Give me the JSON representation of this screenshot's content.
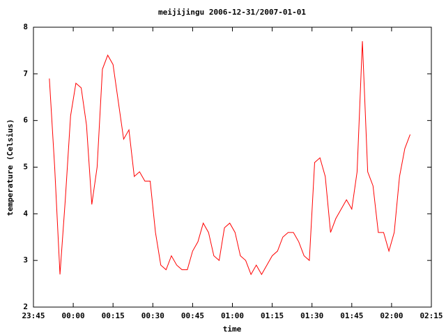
{
  "chart_data": {
    "type": "line",
    "title": "meijijingu 2006-12-31/2007-01-01",
    "xlabel": "time",
    "ylabel": "temperature (Celsius)",
    "x": [
      "23:51",
      "23:53",
      "23:55",
      "23:57",
      "23:59",
      "00:01",
      "00:03",
      "00:05",
      "00:07",
      "00:09",
      "00:11",
      "00:13",
      "00:15",
      "00:17",
      "00:19",
      "00:21",
      "00:23",
      "00:25",
      "00:27",
      "00:29",
      "00:31",
      "00:33",
      "00:35",
      "00:37",
      "00:39",
      "00:41",
      "00:43",
      "00:45",
      "00:47",
      "00:49",
      "00:51",
      "00:53",
      "00:55",
      "00:57",
      "00:59",
      "01:01",
      "01:03",
      "01:05",
      "01:07",
      "01:09",
      "01:11",
      "01:13",
      "01:15",
      "01:17",
      "01:19",
      "01:21",
      "01:23",
      "01:25",
      "01:27",
      "01:29",
      "01:31",
      "01:33",
      "01:35",
      "01:37",
      "01:39",
      "01:41",
      "01:43",
      "01:45",
      "01:47",
      "01:49",
      "01:51",
      "01:53",
      "01:55",
      "01:57",
      "01:59",
      "02:01",
      "02:03",
      "02:05",
      "02:07"
    ],
    "series": [
      {
        "color": "#ff0000",
        "values": [
          6.9,
          5.0,
          2.7,
          4.3,
          6.1,
          6.8,
          6.7,
          5.9,
          4.2,
          5.0,
          7.1,
          7.4,
          7.2,
          6.4,
          5.6,
          5.8,
          4.8,
          4.9,
          4.7,
          4.7,
          3.6,
          2.9,
          2.8,
          3.1,
          2.9,
          2.8,
          2.8,
          3.2,
          3.4,
          3.8,
          3.6,
          3.1,
          3.0,
          3.7,
          3.8,
          3.6,
          3.1,
          3.0,
          2.7,
          2.9,
          2.7,
          2.9,
          3.1,
          3.2,
          3.5,
          3.6,
          3.6,
          3.4,
          3.1,
          3.0,
          5.1,
          5.2,
          4.8,
          3.6,
          3.9,
          4.1,
          4.3,
          4.1,
          4.9,
          7.7,
          4.9,
          4.6,
          3.6,
          3.6,
          3.2,
          3.6,
          4.8,
          5.4,
          5.7
        ]
      }
    ],
    "xlim": [
      "23:45",
      "02:15"
    ],
    "xticks": [
      "23:45",
      "00:00",
      "00:15",
      "00:30",
      "00:45",
      "01:00",
      "01:15",
      "01:30",
      "01:45",
      "02:00",
      "02:15"
    ],
    "ylim": [
      2,
      8
    ],
    "yticks": [
      2,
      3,
      4,
      5,
      6,
      7,
      8
    ]
  }
}
